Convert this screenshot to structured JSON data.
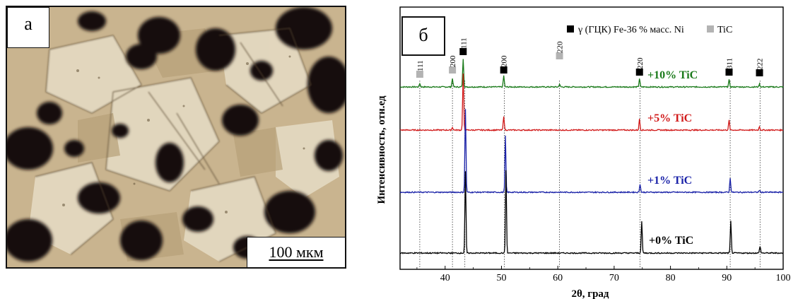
{
  "panel_a": {
    "letter": "а",
    "scale_bar": "100 мкм"
  },
  "panel_b": {
    "letter": "б"
  },
  "chart_data": {
    "type": "line",
    "xlabel": "2θ, град",
    "ylabel": "Интенсивность, отн.ед",
    "xlim": [
      32,
      100
    ],
    "xticks": [
      40,
      50,
      60,
      70,
      80,
      90,
      100
    ],
    "grid": false,
    "legend": {
      "placement": "top-right",
      "entries": [
        {
          "marker": "black-square",
          "text": "γ (ГЦК) Fe-36 % масс. Ni",
          "color": "#000000"
        },
        {
          "marker": "gray-square",
          "text": "TiC",
          "color": "#b3b3b3"
        }
      ]
    },
    "series": [
      {
        "name": "+10% TiC",
        "color": "#1a7a1a",
        "peaks": [
          {
            "x": 35.5,
            "h": 5
          },
          {
            "x": 41.3,
            "h": 12
          },
          {
            "x": 43.2,
            "h": 40
          },
          {
            "x": 50.4,
            "h": 16
          },
          {
            "x": 60.3,
            "h": 4
          },
          {
            "x": 74.5,
            "h": 12
          },
          {
            "x": 90.4,
            "h": 10
          },
          {
            "x": 95.8,
            "h": 4
          }
        ]
      },
      {
        "name": "+5% TiC",
        "color": "#d11a1a",
        "peaks": [
          {
            "x": 41.3,
            "h": 4
          },
          {
            "x": 43.2,
            "h": 80
          },
          {
            "x": 50.4,
            "h": 20
          },
          {
            "x": 74.5,
            "h": 16
          },
          {
            "x": 90.4,
            "h": 14
          },
          {
            "x": 95.8,
            "h": 5
          }
        ]
      },
      {
        "name": "+1% TiC",
        "color": "#1a22a8",
        "peaks": [
          {
            "x": 43.6,
            "h": 118
          },
          {
            "x": 50.7,
            "h": 80
          },
          {
            "x": 74.6,
            "h": 12
          },
          {
            "x": 90.6,
            "h": 20
          },
          {
            "x": 95.8,
            "h": 3
          }
        ]
      },
      {
        "name": "+0% TiC",
        "color": "#000000",
        "peaks": [
          {
            "x": 43.6,
            "h": 115
          },
          {
            "x": 50.8,
            "h": 118
          },
          {
            "x": 74.9,
            "h": 45
          },
          {
            "x": 90.7,
            "h": 45
          },
          {
            "x": 95.9,
            "h": 10
          }
        ]
      }
    ],
    "reference_lines": [
      35.5,
      41.3,
      43.5,
      50.5,
      60.3,
      74.6,
      90.6,
      95.9
    ],
    "peak_markers": [
      {
        "hkl": "111",
        "x": 35.5,
        "phase": "TiC"
      },
      {
        "hkl": "200",
        "x": 41.3,
        "phase": "TiC"
      },
      {
        "hkl": "111",
        "x": 43.2,
        "phase": "γ"
      },
      {
        "hkl": "200",
        "x": 50.4,
        "phase": "γ"
      },
      {
        "hkl": "220",
        "x": 60.3,
        "phase": "TiC"
      },
      {
        "hkl": "220",
        "x": 74.5,
        "phase": "γ"
      },
      {
        "hkl": "311",
        "x": 90.4,
        "phase": "γ"
      },
      {
        "hkl": "222",
        "x": 95.8,
        "phase": "γ"
      }
    ]
  }
}
